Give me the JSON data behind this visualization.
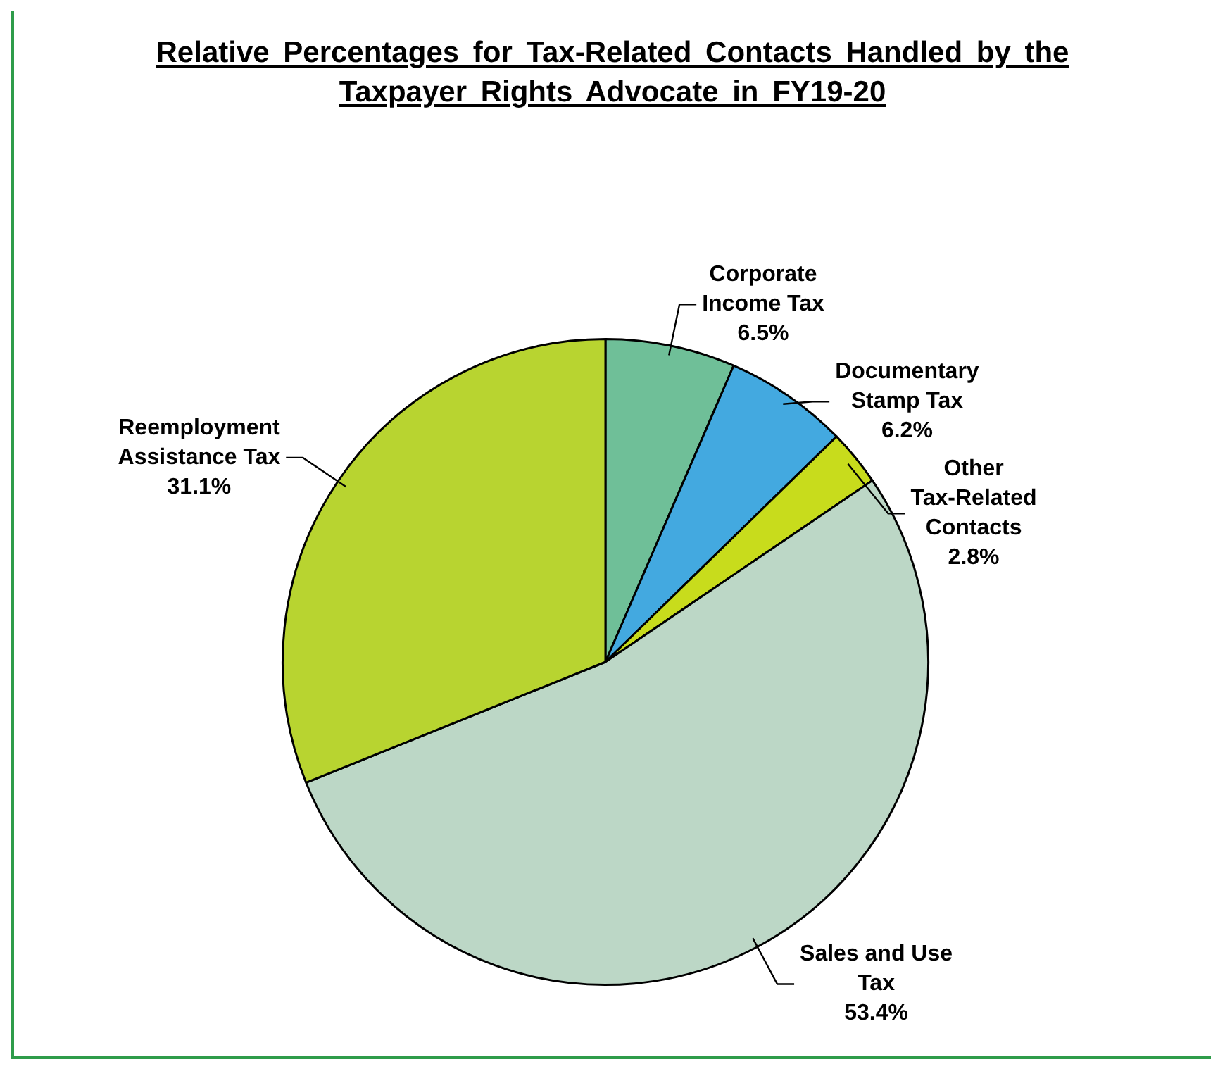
{
  "chart_data": {
    "type": "pie",
    "title": "Relative Percentages for Tax-Related Contacts Handled by the Taxpayer Rights Advocate in FY19-20",
    "categories": [
      "Corporate Income Tax",
      "Documentary Stamp Tax",
      "Other Tax-Related Contacts",
      "Sales and Use Tax",
      "Reemployment Assistance Tax"
    ],
    "values": [
      6.5,
      6.2,
      2.8,
      53.4,
      31.1
    ],
    "value_labels": [
      "6.5%",
      "6.2%",
      "2.8%",
      "53.4%",
      "31.1%"
    ],
    "colors": [
      "#6fbf98",
      "#43a9e0",
      "#c8dc1c",
      "#bcd7c6",
      "#b8d430"
    ],
    "legend": false
  }
}
